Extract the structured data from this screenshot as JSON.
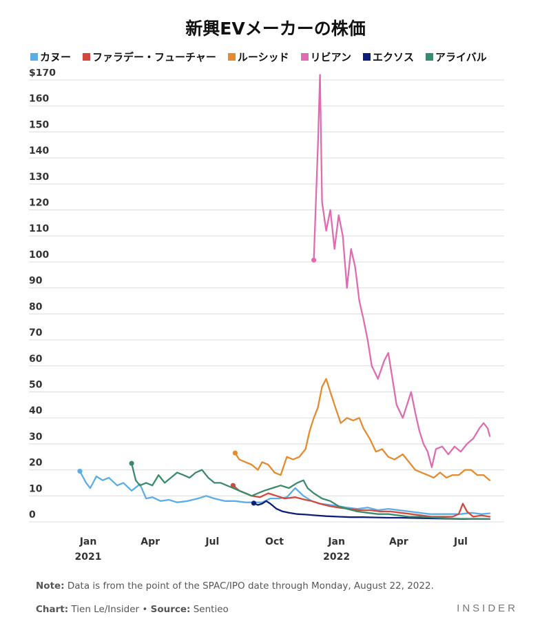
{
  "chart_data": {
    "type": "line",
    "title": "新興EVメーカーの株価",
    "xlabel": "",
    "ylabel": "",
    "ylim": [
      0,
      170
    ],
    "yticks": [
      "0",
      "10",
      "20",
      "30",
      "40",
      "50",
      "60",
      "70",
      "80",
      "90",
      "100",
      "110",
      "120",
      "130",
      "140",
      "150",
      "160",
      "$170"
    ],
    "xticks": [
      {
        "label": "Jan",
        "year": "2021",
        "t": 9.5
      },
      {
        "label": "Apr",
        "year": "",
        "t": 12.5
      },
      {
        "label": "Jul",
        "year": "",
        "t": 15.5
      },
      {
        "label": "Oct",
        "year": "",
        "t": 18.5
      },
      {
        "label": "Jan",
        "year": "2022",
        "t": 21.5
      },
      {
        "label": "Apr",
        "year": "",
        "t": 24.5
      },
      {
        "label": "Jul",
        "year": "",
        "t": 27.5
      }
    ],
    "x_unit": "months since Jan 2020 (chart range 8.1 to 29.2)",
    "series": [
      {
        "name": "カヌー",
        "color": "#5AADE5",
        "points": [
          [
            9.1,
            19.5
          ],
          [
            9.4,
            15
          ],
          [
            9.6,
            13
          ],
          [
            9.9,
            17.5
          ],
          [
            10.2,
            16
          ],
          [
            10.5,
            17
          ],
          [
            10.9,
            14
          ],
          [
            11.2,
            15
          ],
          [
            11.6,
            12
          ],
          [
            12.0,
            14.5
          ],
          [
            12.3,
            9
          ],
          [
            12.6,
            9.5
          ],
          [
            13.0,
            8
          ],
          [
            13.4,
            8.5
          ],
          [
            13.8,
            7.5
          ],
          [
            14.3,
            8
          ],
          [
            14.8,
            9
          ],
          [
            15.2,
            10
          ],
          [
            15.6,
            9
          ],
          [
            16.1,
            8
          ],
          [
            16.6,
            8
          ],
          [
            17.1,
            7.5
          ],
          [
            17.5,
            7.5
          ],
          [
            17.9,
            7.5
          ],
          [
            18.3,
            9
          ],
          [
            18.7,
            9
          ],
          [
            19.1,
            9.5
          ],
          [
            19.5,
            13
          ],
          [
            19.9,
            10
          ],
          [
            20.3,
            8
          ],
          [
            20.7,
            7
          ],
          [
            21.2,
            6.5
          ],
          [
            21.6,
            6
          ],
          [
            22.0,
            5.5
          ],
          [
            22.5,
            5
          ],
          [
            23.0,
            5.5
          ],
          [
            23.5,
            4.5
          ],
          [
            24.0,
            5
          ],
          [
            24.5,
            4.5
          ],
          [
            25.0,
            4
          ],
          [
            25.5,
            3.5
          ],
          [
            26.0,
            3
          ],
          [
            26.5,
            3
          ],
          [
            27.0,
            3
          ],
          [
            27.5,
            3
          ],
          [
            28.0,
            3.5
          ],
          [
            28.5,
            3
          ],
          [
            28.9,
            3.3
          ]
        ]
      },
      {
        "name": "ファラデー・フューチャー",
        "color": "#D2483E",
        "points": [
          [
            16.5,
            14
          ],
          [
            16.8,
            12
          ],
          [
            17.1,
            11
          ],
          [
            17.4,
            10
          ],
          [
            17.8,
            9.5
          ],
          [
            18.2,
            11
          ],
          [
            18.6,
            10
          ],
          [
            19.0,
            9
          ],
          [
            19.5,
            9.5
          ],
          [
            20.0,
            8.5
          ],
          [
            20.3,
            8
          ],
          [
            20.7,
            7
          ],
          [
            21.2,
            6
          ],
          [
            21.6,
            5.5
          ],
          [
            22.1,
            5
          ],
          [
            22.6,
            4.5
          ],
          [
            23.1,
            4.5
          ],
          [
            23.6,
            4
          ],
          [
            24.1,
            4
          ],
          [
            24.6,
            3.5
          ],
          [
            25.1,
            3
          ],
          [
            25.6,
            2.5
          ],
          [
            26.1,
            2
          ],
          [
            26.6,
            2
          ],
          [
            27.1,
            2
          ],
          [
            27.4,
            3
          ],
          [
            27.6,
            7
          ],
          [
            27.8,
            4
          ],
          [
            28.1,
            2
          ],
          [
            28.5,
            2.5
          ],
          [
            28.9,
            2
          ]
        ]
      },
      {
        "name": "ルーシッド",
        "color": "#E68A2E",
        "points": [
          [
            16.6,
            26.5
          ],
          [
            16.8,
            24
          ],
          [
            17.1,
            23
          ],
          [
            17.4,
            22
          ],
          [
            17.7,
            20
          ],
          [
            17.9,
            23
          ],
          [
            18.2,
            22
          ],
          [
            18.5,
            19
          ],
          [
            18.8,
            18
          ],
          [
            19.1,
            25
          ],
          [
            19.4,
            24
          ],
          [
            19.7,
            25
          ],
          [
            20.0,
            28
          ],
          [
            20.2,
            35
          ],
          [
            20.4,
            40
          ],
          [
            20.6,
            44
          ],
          [
            20.8,
            52
          ],
          [
            21.0,
            55
          ],
          [
            21.2,
            50
          ],
          [
            21.4,
            45
          ],
          [
            21.7,
            38
          ],
          [
            22.0,
            40
          ],
          [
            22.3,
            39
          ],
          [
            22.6,
            40
          ],
          [
            22.8,
            36
          ],
          [
            23.1,
            32
          ],
          [
            23.4,
            27
          ],
          [
            23.7,
            28
          ],
          [
            24.0,
            25
          ],
          [
            24.3,
            24
          ],
          [
            24.7,
            26
          ],
          [
            25.0,
            23
          ],
          [
            25.3,
            20
          ],
          [
            25.6,
            19
          ],
          [
            25.9,
            18
          ],
          [
            26.2,
            17
          ],
          [
            26.5,
            19
          ],
          [
            26.8,
            17
          ],
          [
            27.1,
            18
          ],
          [
            27.4,
            18
          ],
          [
            27.7,
            20
          ],
          [
            28.0,
            20
          ],
          [
            28.3,
            18
          ],
          [
            28.6,
            18
          ],
          [
            28.9,
            16
          ]
        ]
      },
      {
        "name": "リビアン",
        "color": "#E06BB0",
        "points": [
          [
            20.4,
            100.7
          ],
          [
            20.6,
            145
          ],
          [
            20.7,
            172
          ],
          [
            20.8,
            123
          ],
          [
            21.0,
            112
          ],
          [
            21.2,
            120
          ],
          [
            21.4,
            105
          ],
          [
            21.6,
            118
          ],
          [
            21.8,
            110
          ],
          [
            22.0,
            90
          ],
          [
            22.2,
            105
          ],
          [
            22.4,
            98
          ],
          [
            22.6,
            85
          ],
          [
            22.8,
            78
          ],
          [
            23.0,
            70
          ],
          [
            23.2,
            60
          ],
          [
            23.5,
            55
          ],
          [
            23.8,
            62
          ],
          [
            24.0,
            65
          ],
          [
            24.2,
            55
          ],
          [
            24.4,
            45
          ],
          [
            24.7,
            40
          ],
          [
            24.9,
            45
          ],
          [
            25.1,
            50
          ],
          [
            25.3,
            42
          ],
          [
            25.5,
            35
          ],
          [
            25.7,
            30
          ],
          [
            25.9,
            27
          ],
          [
            26.1,
            21
          ],
          [
            26.3,
            28
          ],
          [
            26.6,
            29
          ],
          [
            26.9,
            26
          ],
          [
            27.2,
            29
          ],
          [
            27.5,
            27
          ],
          [
            27.8,
            30
          ],
          [
            28.1,
            32
          ],
          [
            28.4,
            36
          ],
          [
            28.6,
            38
          ],
          [
            28.8,
            36
          ],
          [
            28.9,
            33
          ]
        ]
      },
      {
        "name": "エクソス",
        "color": "#0D1E7A",
        "points": [
          [
            17.5,
            7.2
          ],
          [
            17.7,
            6.5
          ],
          [
            17.9,
            7
          ],
          [
            18.1,
            8
          ],
          [
            18.3,
            7
          ],
          [
            18.6,
            5
          ],
          [
            18.9,
            4
          ],
          [
            19.2,
            3.5
          ],
          [
            19.6,
            3
          ],
          [
            20.0,
            2.8
          ],
          [
            20.5,
            2.5
          ],
          [
            21.0,
            2.2
          ],
          [
            21.6,
            2
          ],
          [
            22.2,
            1.8
          ],
          [
            22.8,
            1.8
          ],
          [
            23.4,
            1.7
          ],
          [
            24.0,
            1.6
          ],
          [
            24.6,
            1.6
          ],
          [
            25.2,
            1.5
          ],
          [
            25.8,
            1.4
          ],
          [
            26.4,
            1.3
          ],
          [
            27.0,
            1.2
          ],
          [
            27.6,
            1.1
          ],
          [
            28.2,
            1.2
          ],
          [
            28.9,
            1.1
          ]
        ]
      },
      {
        "name": "アライバル",
        "color": "#3A8A6B",
        "points": [
          [
            11.6,
            22.5
          ],
          [
            11.8,
            16
          ],
          [
            12.0,
            14
          ],
          [
            12.3,
            15
          ],
          [
            12.6,
            14
          ],
          [
            12.9,
            18
          ],
          [
            13.2,
            15
          ],
          [
            13.5,
            17
          ],
          [
            13.8,
            19
          ],
          [
            14.1,
            18
          ],
          [
            14.4,
            17
          ],
          [
            14.7,
            19
          ],
          [
            15.0,
            20
          ],
          [
            15.3,
            17
          ],
          [
            15.6,
            15
          ],
          [
            15.9,
            15
          ],
          [
            16.2,
            14
          ],
          [
            16.5,
            13
          ],
          [
            16.8,
            12
          ],
          [
            17.1,
            11
          ],
          [
            17.4,
            10
          ],
          [
            17.7,
            11
          ],
          [
            18.0,
            12
          ],
          [
            18.4,
            13
          ],
          [
            18.8,
            14
          ],
          [
            19.2,
            13
          ],
          [
            19.6,
            15
          ],
          [
            19.9,
            16
          ],
          [
            20.1,
            13
          ],
          [
            20.4,
            11
          ],
          [
            20.8,
            9
          ],
          [
            21.2,
            8
          ],
          [
            21.6,
            6
          ],
          [
            22.0,
            5
          ],
          [
            22.5,
            4
          ],
          [
            23.0,
            3.5
          ],
          [
            23.5,
            3
          ],
          [
            24.0,
            3
          ],
          [
            24.5,
            2.5
          ],
          [
            25.0,
            2
          ],
          [
            25.5,
            2
          ],
          [
            26.0,
            1.8
          ],
          [
            26.5,
            1.5
          ],
          [
            27.0,
            1.3
          ],
          [
            27.5,
            1.2
          ],
          [
            28.0,
            1.2
          ],
          [
            28.5,
            1.1
          ],
          [
            28.9,
            1.1
          ]
        ]
      }
    ]
  },
  "note": {
    "label": "Note:",
    "text": " Data is from the point of the SPAC/IPO date through Monday, August 22, 2022."
  },
  "credit": {
    "chart_label": "Chart:",
    "chart_text": " Tien Le/Insider • ",
    "source_label": "Source:",
    "source_text": " Sentieo"
  },
  "brand": "INSIDER"
}
